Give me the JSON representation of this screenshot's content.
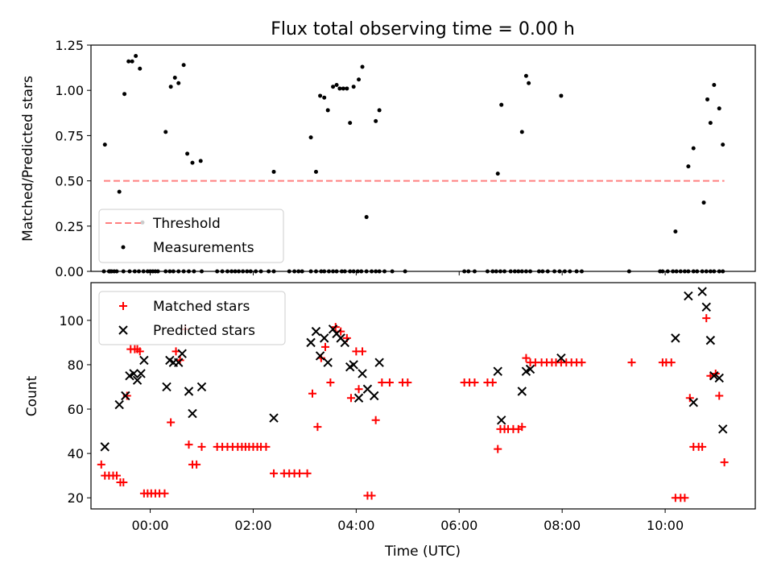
{
  "title": "Flux total observing time = 0.00 h",
  "chart_data": [
    {
      "type": "scatter",
      "panel": "top",
      "title": "Flux total observing time = 0.00 h",
      "xlabel": "",
      "ylabel": "Matched/Predicted stars",
      "xlim": [
        -1.15,
        11.75
      ],
      "ylim": [
        0,
        1.25
      ],
      "yticks": [
        "0.00",
        "0.25",
        "0.50",
        "0.75",
        "1.00",
        "1.25"
      ],
      "grid": false,
      "legend_position": "lower-left",
      "threshold": {
        "name": "Threshold",
        "y": 0.5,
        "x_range": [
          -0.9,
          11.15
        ],
        "color": "#ff8080",
        "style": "dashed"
      },
      "series": [
        {
          "name": "Measurements",
          "color": "#000000",
          "marker": "dot",
          "x": [
            -0.9,
            -0.8,
            -0.75,
            -0.7,
            -0.65,
            -0.52,
            -0.4,
            -0.3,
            -0.22,
            -0.13,
            -0.05,
            0.0,
            0.05,
            0.1,
            0.15,
            0.3,
            0.38,
            0.45,
            0.55,
            0.65,
            0.75,
            0.85,
            1.0,
            1.3,
            1.4,
            1.5,
            1.58,
            1.65,
            1.72,
            1.8,
            1.88,
            1.95,
            2.05,
            2.15,
            2.3,
            2.4,
            2.7,
            2.8,
            2.88,
            2.95,
            3.12,
            3.22,
            3.32,
            3.38,
            3.47,
            3.55,
            3.62,
            3.72,
            3.78,
            3.88,
            3.95,
            4.03,
            4.1,
            4.2,
            4.3,
            4.38,
            4.45,
            4.55,
            4.7,
            4.95,
            6.1,
            6.18,
            6.3,
            6.55,
            6.65,
            6.72,
            6.8,
            6.88,
            7.0,
            7.08,
            7.15,
            7.22,
            7.3,
            7.38,
            7.55,
            7.62,
            7.72,
            7.85,
            7.95,
            8.05,
            8.15,
            8.28,
            8.38,
            9.3,
            9.9,
            9.95,
            10.05,
            10.15,
            10.22,
            10.3,
            10.38,
            10.45,
            10.55,
            10.62,
            10.72,
            10.8,
            10.88,
            10.95,
            11.05,
            11.12
          ],
          "y": [
            0.0,
            0.0,
            0.0,
            0.0,
            0.0,
            0.0,
            0.0,
            0.0,
            0.0,
            0.0,
            0.0,
            0.0,
            0.0,
            0.0,
            0.0,
            0.0,
            0.0,
            0.0,
            0.0,
            0.0,
            0.0,
            0.0,
            0.0,
            0.0,
            0.0,
            0.0,
            0.0,
            0.0,
            0.0,
            0.0,
            0.0,
            0.0,
            0.0,
            0.0,
            0.0,
            0.0,
            0.0,
            0.0,
            0.0,
            0.0,
            0.0,
            0.0,
            0.0,
            0.0,
            0.0,
            0.0,
            0.0,
            0.0,
            0.0,
            0.0,
            0.0,
            0.0,
            0.0,
            0.0,
            0.0,
            0.0,
            0.0,
            0.0,
            0.0,
            0.0,
            0.0,
            0.0,
            0.0,
            0.0,
            0.0,
            0.0,
            0.0,
            0.0,
            0.0,
            0.0,
            0.0,
            0.0,
            0.0,
            0.0,
            0.0,
            0.0,
            0.0,
            0.0,
            0.0,
            0.0,
            0.0,
            0.0,
            0.0,
            0.0,
            0.0,
            0.0,
            0.0,
            0.0,
            0.0,
            0.0,
            0.0,
            0.0,
            0.0,
            0.0,
            0.0,
            0.0,
            0.0,
            0.0,
            0.0,
            0.0
          ]
        },
        {
          "name": "Measurements",
          "color": "#000000",
          "marker": "dot",
          "x": [
            -0.88,
            -0.78,
            -0.6,
            -0.5,
            -0.42,
            -0.35,
            -0.28,
            -0.2,
            -0.15,
            0.3,
            0.4,
            0.48,
            0.55,
            0.65,
            0.72,
            0.82,
            0.98,
            2.4,
            3.12,
            3.22,
            3.3,
            3.38,
            3.45,
            3.55,
            3.62,
            3.68,
            3.75,
            3.82,
            3.88,
            3.95,
            4.05,
            4.12,
            4.2,
            4.38,
            4.45,
            6.75,
            6.82,
            7.22,
            7.3,
            7.35,
            7.98,
            10.2,
            10.45,
            10.55,
            10.75,
            10.82,
            10.88,
            10.95,
            11.05,
            11.12
          ],
          "y": [
            0.7,
            0.0,
            0.44,
            0.98,
            1.16,
            1.16,
            1.19,
            1.12,
            0.27,
            0.77,
            1.02,
            1.07,
            1.04,
            1.14,
            0.65,
            0.6,
            0.61,
            0.55,
            0.74,
            0.55,
            0.97,
            0.96,
            0.89,
            1.02,
            1.03,
            1.01,
            1.01,
            1.01,
            0.82,
            1.02,
            1.06,
            1.13,
            0.3,
            0.83,
            0.89,
            0.54,
            0.92,
            0.77,
            1.08,
            1.04,
            0.97,
            0.22,
            0.58,
            0.68,
            0.38,
            0.95,
            0.82,
            1.03,
            0.9,
            0.7
          ]
        }
      ]
    },
    {
      "type": "scatter",
      "panel": "bottom",
      "xlabel": "Time (UTC)",
      "ylabel": "Count",
      "xlim": [
        -1.15,
        11.75
      ],
      "ylim": [
        15,
        117
      ],
      "xticks": [
        "00:00",
        "02:00",
        "04:00",
        "06:00",
        "08:00",
        "10:00"
      ],
      "yticks": [
        "20",
        "40",
        "60",
        "80",
        "100"
      ],
      "grid": false,
      "legend_position": "upper-left",
      "series": [
        {
          "name": "Matched stars",
          "color": "#ff0000",
          "marker": "plus",
          "x": [
            -0.95,
            -0.88,
            -0.8,
            -0.72,
            -0.65,
            -0.58,
            -0.52,
            -0.45,
            -0.38,
            -0.3,
            -0.25,
            -0.2,
            -0.12,
            -0.05,
            0.02,
            0.1,
            0.18,
            0.28,
            0.4,
            0.5,
            0.58,
            0.68,
            0.75,
            0.82,
            0.9,
            1.0,
            1.3,
            1.4,
            1.5,
            1.6,
            1.7,
            1.78,
            1.85,
            1.92,
            2.0,
            2.08,
            2.15,
            2.25,
            2.4,
            2.6,
            2.7,
            2.8,
            2.9,
            3.05,
            3.15,
            3.25,
            3.32,
            3.4,
            3.5,
            3.6,
            3.7,
            3.82,
            3.9,
            4.0,
            4.05,
            4.12,
            4.22,
            4.3,
            4.38,
            4.5,
            4.65,
            4.9,
            5.0,
            6.1,
            6.2,
            6.3,
            6.55,
            6.65,
            6.75,
            6.8,
            6.88,
            6.95,
            7.05,
            7.15,
            7.22,
            7.3,
            7.38,
            7.48,
            7.6,
            7.7,
            7.8,
            7.88,
            7.98,
            8.08,
            8.18,
            8.28,
            8.38,
            9.35,
            9.95,
            10.02,
            10.12,
            10.2,
            10.3,
            10.38,
            10.48,
            10.55,
            10.65,
            10.72,
            10.8,
            10.88,
            10.98,
            11.05,
            11.15
          ],
          "y": [
            35,
            30,
            30,
            30,
            30,
            27,
            27,
            66,
            87,
            87,
            87,
            86,
            22,
            22,
            22,
            22,
            22,
            22,
            54,
            86,
            82,
            96,
            44,
            35,
            35,
            43,
            43,
            43,
            43,
            43,
            43,
            43,
            43,
            43,
            43,
            43,
            43,
            43,
            31,
            31,
            31,
            31,
            31,
            31,
            67,
            52,
            83,
            88,
            72,
            97,
            95,
            92,
            65,
            86,
            69,
            86,
            21,
            21,
            55,
            72,
            72,
            72,
            72,
            72,
            72,
            72,
            72,
            72,
            42,
            51,
            51,
            51,
            51,
            51,
            52,
            83,
            81,
            81,
            81,
            81,
            81,
            81,
            81,
            81,
            81,
            81,
            81,
            81,
            81,
            81,
            81,
            20,
            20,
            20,
            65,
            43,
            43,
            43,
            101,
            75,
            76,
            66,
            36
          ]
        },
        {
          "name": "Predicted stars",
          "color": "#000000",
          "marker": "x",
          "x": [
            -0.88,
            -0.6,
            -0.48,
            -0.4,
            -0.32,
            -0.25,
            -0.18,
            -0.12,
            0.32,
            0.38,
            0.45,
            0.55,
            0.62,
            0.75,
            0.82,
            1.0,
            2.4,
            3.12,
            3.22,
            3.3,
            3.38,
            3.45,
            3.55,
            3.62,
            3.7,
            3.78,
            3.88,
            3.95,
            4.05,
            4.12,
            4.22,
            4.35,
            4.45,
            6.75,
            6.82,
            7.22,
            7.3,
            7.38,
            7.98,
            10.2,
            10.45,
            10.55,
            10.72,
            10.8,
            10.88,
            10.95,
            11.05,
            11.12
          ],
          "y": [
            43,
            62,
            66,
            75,
            76,
            73,
            76,
            82,
            70,
            82,
            81,
            81,
            85,
            68,
            58,
            70,
            56,
            90,
            95,
            84,
            92,
            81,
            96,
            94,
            92,
            90,
            79,
            80,
            65,
            76,
            69,
            66,
            81,
            77,
            55,
            68,
            77,
            78,
            83,
            92,
            111,
            63,
            113,
            106,
            91,
            75,
            74,
            51
          ]
        }
      ]
    }
  ]
}
